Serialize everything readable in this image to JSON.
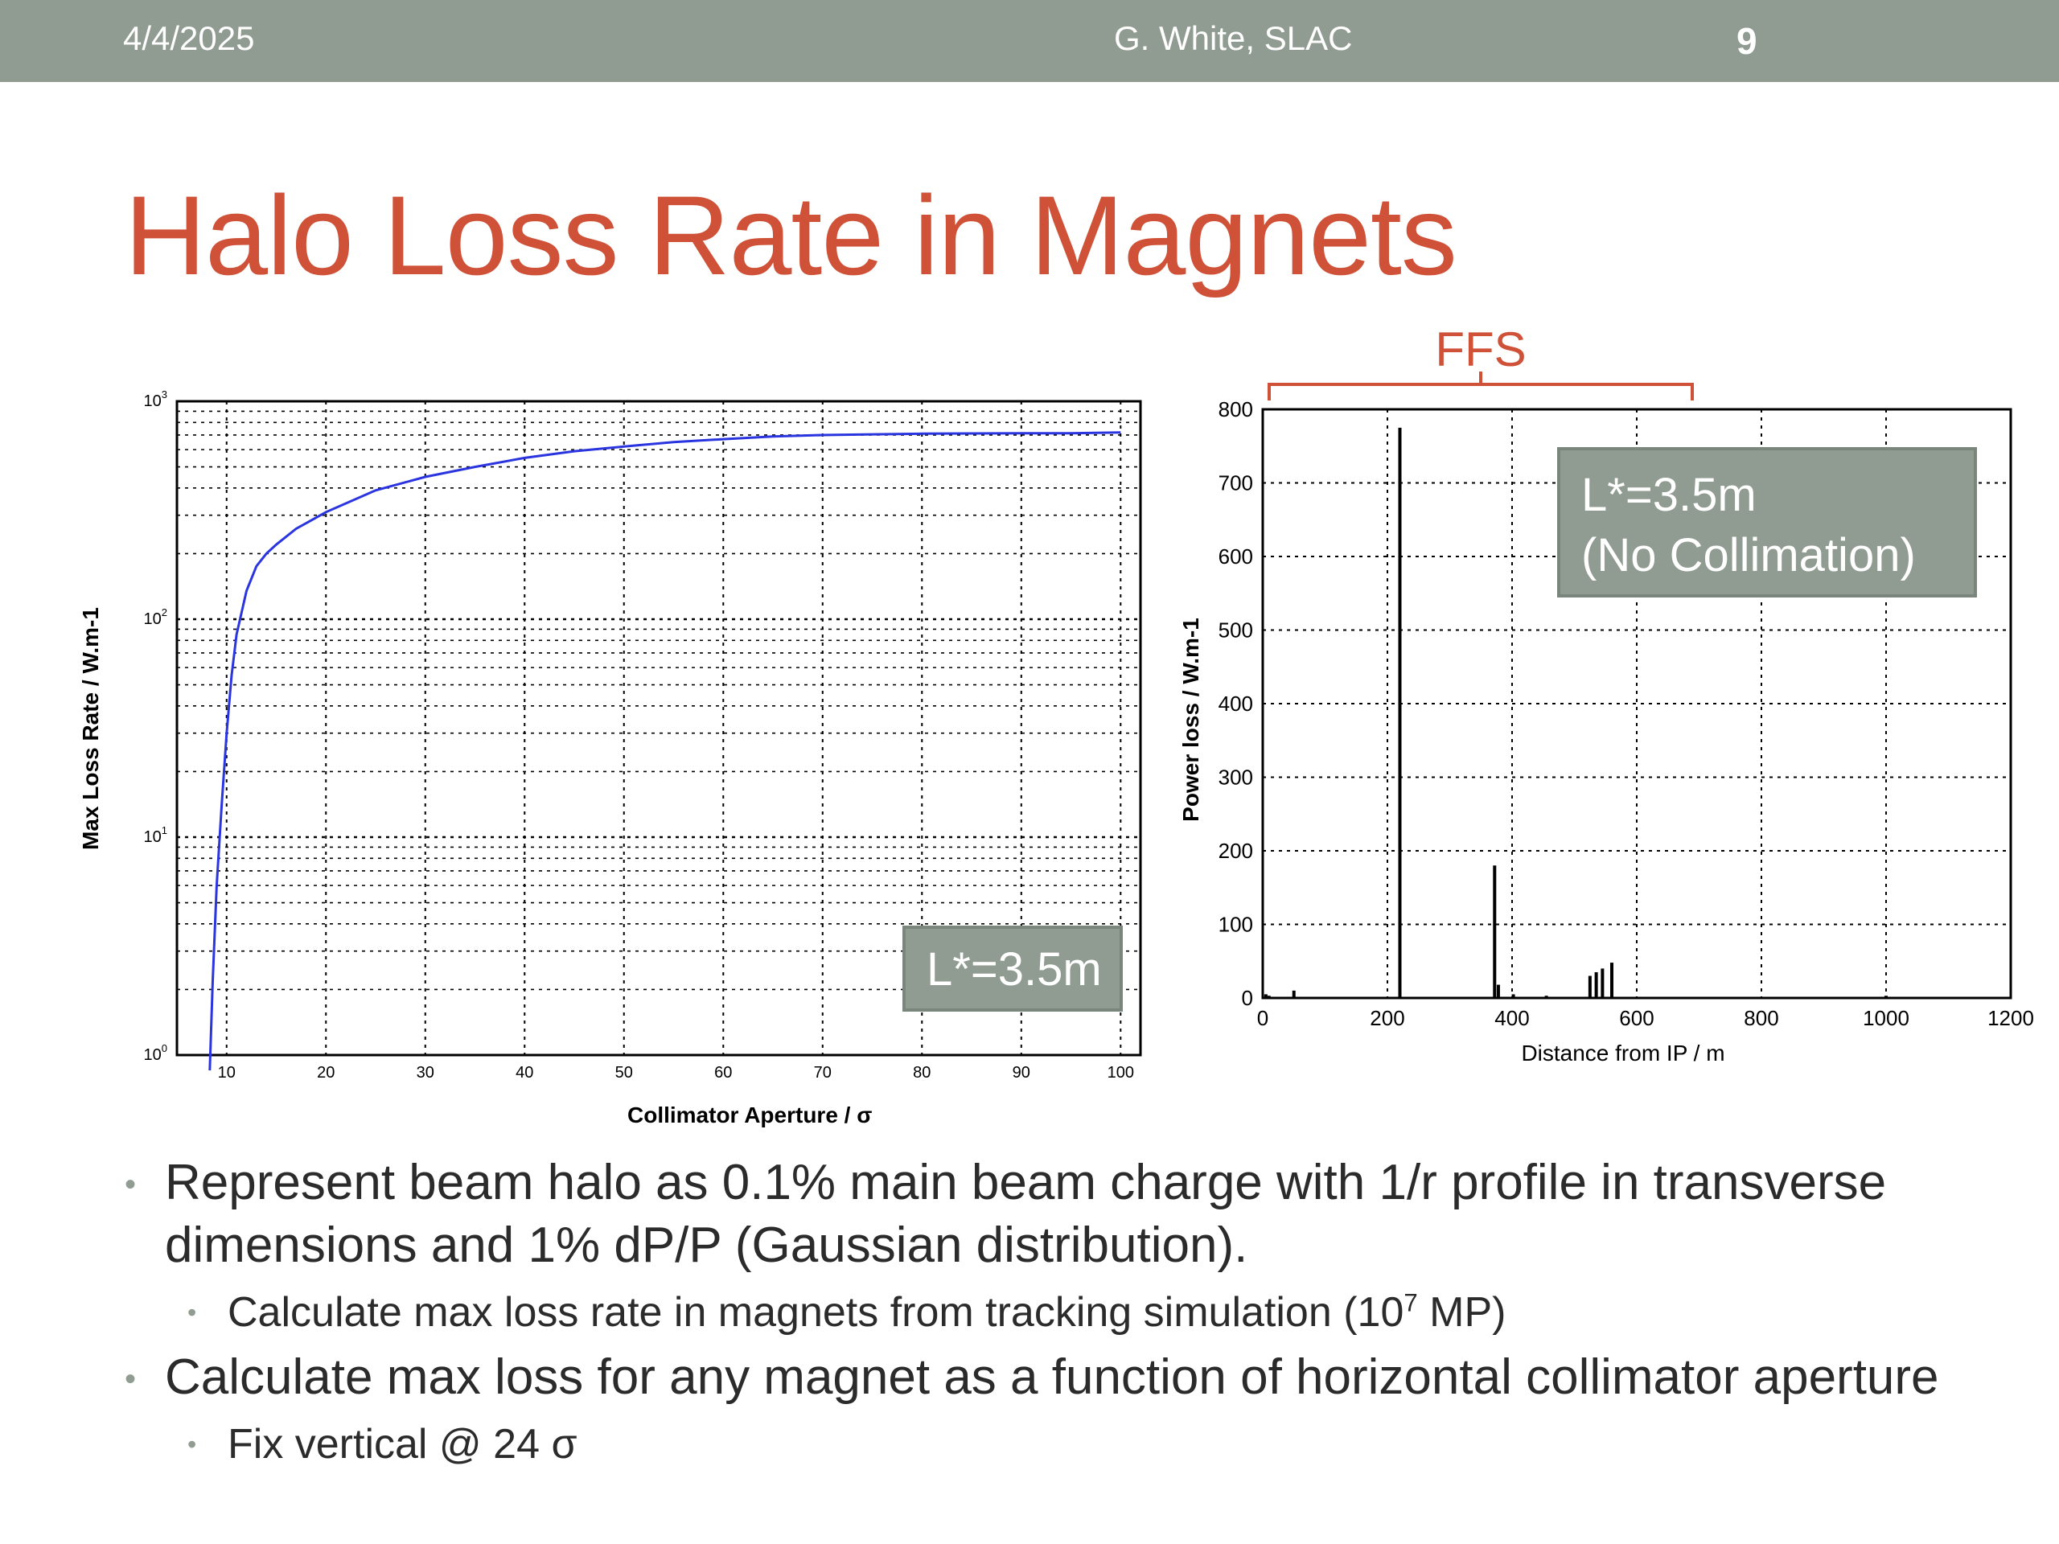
{
  "header": {
    "date": "4/4/2025",
    "author": "G. White, SLAC",
    "page_number": "9"
  },
  "slide": {
    "title": "Halo Loss Rate in Magnets"
  },
  "annotations": {
    "left_box_label": "L*=3.5m",
    "right_box_line1": "L*=3.5m",
    "right_box_line2": "(No Collimation)",
    "ffs_label": "FFS"
  },
  "bullets": [
    {
      "text": "Represent beam halo as 0.1% main beam charge with 1/r profile in transverse dimensions and 1% dP/P (Gaussian distribution).",
      "sub": [
        {
          "pre": "Calculate max loss rate in magnets from tracking simulation (10",
          "sup": "7",
          "post": " MP)"
        }
      ]
    },
    {
      "text": "Calculate max loss for any magnet as a function of horizontal collimator aperture",
      "sub": [
        {
          "pre": "Fix vertical @ 24 σ",
          "sup": "",
          "post": ""
        }
      ]
    }
  ],
  "chart_data": [
    {
      "type": "line",
      "title": "",
      "xlabel": "Collimator Aperture / σ",
      "ylabel": "Max Loss Rate / W.m-1",
      "xlim": [
        5,
        102
      ],
      "ylim": [
        1,
        1000
      ],
      "yscale": "log",
      "grid": true,
      "x_ticks": [
        10,
        20,
        30,
        40,
        50,
        60,
        70,
        80,
        90,
        100
      ],
      "y_tick_labels": [
        {
          "base": "10",
          "exp": "0",
          "value": 1
        },
        {
          "base": "10",
          "exp": "1",
          "value": 10
        },
        {
          "base": "10",
          "exp": "2",
          "value": 100
        },
        {
          "base": "10",
          "exp": "3",
          "value": 1000
        }
      ],
      "series": [
        {
          "color": "#2a35e0",
          "x": [
            8.3,
            8.6,
            9,
            9.5,
            10,
            10.5,
            11,
            12,
            13,
            14,
            15,
            17,
            20,
            25,
            30,
            35,
            40,
            45,
            50,
            55,
            60,
            65,
            70,
            75,
            80,
            85,
            90,
            95,
            100
          ],
          "y": [
            0.85,
            2.2,
            6,
            14,
            30,
            55,
            85,
            135,
            175,
            200,
            220,
            260,
            310,
            390,
            450,
            500,
            550,
            590,
            620,
            650,
            670,
            690,
            700,
            705,
            710,
            712,
            713,
            713,
            720
          ]
        }
      ]
    },
    {
      "type": "bar",
      "title": "",
      "xlabel": "Distance from IP / m",
      "ylabel": "Power loss / W.m-1",
      "xlim": [
        0,
        1200
      ],
      "ylim": [
        0,
        800
      ],
      "grid": true,
      "x_ticks": [
        0,
        200,
        400,
        600,
        800,
        1000,
        1200
      ],
      "y_ticks": [
        0,
        100,
        200,
        300,
        400,
        500,
        600,
        700,
        800
      ],
      "series": [
        {
          "color": "#000000",
          "x": [
            5,
            10,
            50,
            220,
            372,
            378,
            402,
            455,
            525,
            535,
            545,
            560,
            1000
          ],
          "y": [
            5,
            3,
            10,
            775,
            180,
            18,
            5,
            3,
            30,
            35,
            40,
            48,
            3
          ]
        }
      ]
    }
  ]
}
